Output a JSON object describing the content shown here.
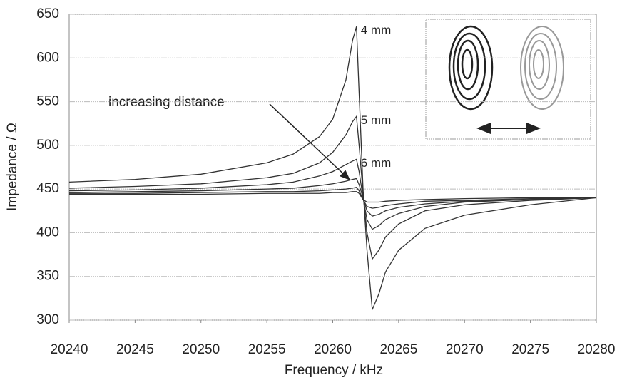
{
  "chart_data": {
    "type": "line",
    "x_label": "Frequency / kHz",
    "y_label": "Impedance / Ω",
    "annotation": "increasing distance",
    "x": [
      20240,
      20245,
      20250,
      20255,
      20257,
      20259,
      20260,
      20261,
      20261.5,
      20261.8,
      20262,
      20262.3,
      20262.6,
      20263,
      20263.5,
      20264,
      20265,
      20267,
      20270,
      20275,
      20280
    ],
    "series": [
      {
        "name": "4 mm",
        "color": "#333333",
        "values": [
          458,
          461,
          467,
          480,
          490,
          510,
          530,
          575,
          620,
          636,
          560,
          450,
          380,
          312,
          330,
          355,
          380,
          405,
          420,
          432,
          440
        ]
      },
      {
        "name": "5 mm",
        "color": "#333333",
        "values": [
          451,
          453,
          456,
          463,
          468,
          480,
          492,
          512,
          527,
          533,
          500,
          445,
          400,
          370,
          380,
          395,
          410,
          425,
          432,
          437,
          440
        ]
      },
      {
        "name": "6 mm",
        "color": "#333333",
        "values": [
          448,
          449,
          451,
          455,
          458,
          465,
          470,
          478,
          482,
          484,
          470,
          440,
          415,
          404,
          408,
          415,
          422,
          430,
          435,
          438,
          440
        ]
      },
      {
        "color": "#333333",
        "values": [
          446,
          447,
          448,
          450,
          451,
          454,
          456,
          459,
          461,
          462,
          455,
          440,
          425,
          419,
          421,
          425,
          429,
          433,
          436,
          438,
          440
        ]
      },
      {
        "color": "#333333",
        "values": [
          445,
          445,
          446,
          447,
          447,
          448,
          449,
          450,
          451,
          452,
          448,
          438,
          430,
          428,
          429,
          431,
          433,
          436,
          437,
          439,
          440
        ]
      },
      {
        "color": "#333333",
        "values": [
          444,
          444,
          444,
          445,
          445,
          445,
          446,
          446,
          447,
          447,
          445,
          438,
          435,
          435,
          435,
          436,
          437,
          438,
          439,
          440,
          440
        ]
      }
    ],
    "xlim": [
      20240,
      20280
    ],
    "xticks": [
      20240,
      20245,
      20250,
      20255,
      20260,
      20265,
      20270,
      20275,
      20280
    ],
    "ylim": [
      300,
      650
    ],
    "yticks": [
      300,
      350,
      400,
      450,
      500,
      550,
      600,
      650
    ],
    "grid": true
  }
}
